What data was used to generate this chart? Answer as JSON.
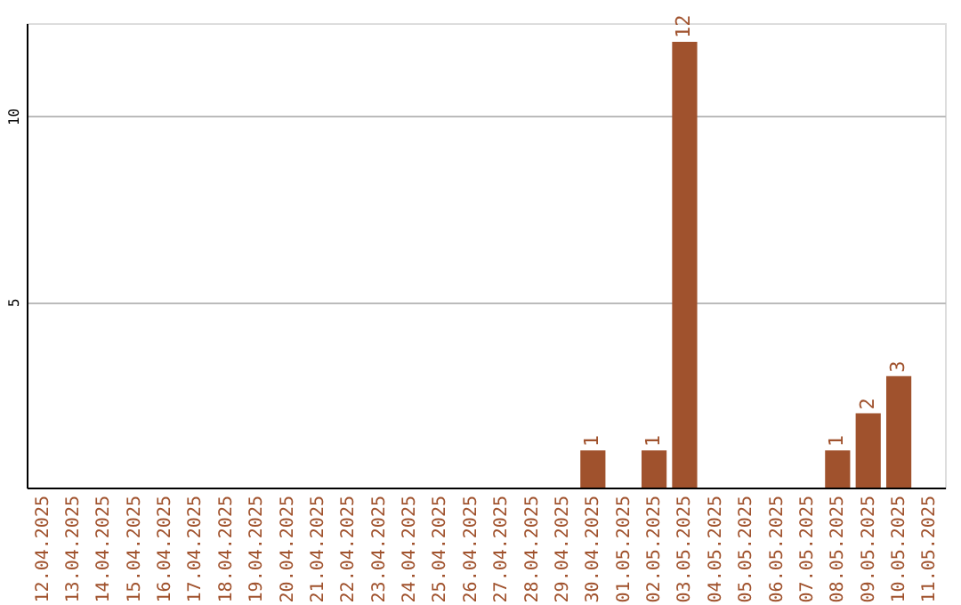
{
  "chart_data": {
    "type": "bar",
    "categories": [
      "12.04.2025",
      "13.04.2025",
      "14.04.2025",
      "15.04.2025",
      "16.04.2025",
      "17.04.2025",
      "18.04.2025",
      "19.04.2025",
      "20.04.2025",
      "21.04.2025",
      "22.04.2025",
      "23.04.2025",
      "24.04.2025",
      "25.04.2025",
      "26.04.2025",
      "27.04.2025",
      "28.04.2025",
      "29.04.2025",
      "30.04.2025",
      "01.05.2025",
      "02.05.2025",
      "03.05.2025",
      "04.05.2025",
      "05.05.2025",
      "06.05.2025",
      "07.05.2025",
      "08.05.2025",
      "09.05.2025",
      "10.05.2025",
      "11.05.2025"
    ],
    "values": [
      0,
      0,
      0,
      0,
      0,
      0,
      0,
      0,
      0,
      0,
      0,
      0,
      0,
      0,
      0,
      0,
      0,
      0,
      1,
      0,
      1,
      12,
      0,
      0,
      0,
      0,
      1,
      2,
      3,
      0
    ],
    "value_labels": [
      null,
      null,
      null,
      null,
      null,
      null,
      null,
      null,
      null,
      null,
      null,
      null,
      null,
      null,
      null,
      null,
      null,
      null,
      "1",
      null,
      "1",
      "12",
      null,
      null,
      null,
      null,
      "1",
      "2",
      "3",
      null
    ],
    "color": "#a0522d",
    "ylim": [
      0,
      12.5
    ],
    "yticks": [
      5,
      10
    ],
    "grid": "y"
  }
}
